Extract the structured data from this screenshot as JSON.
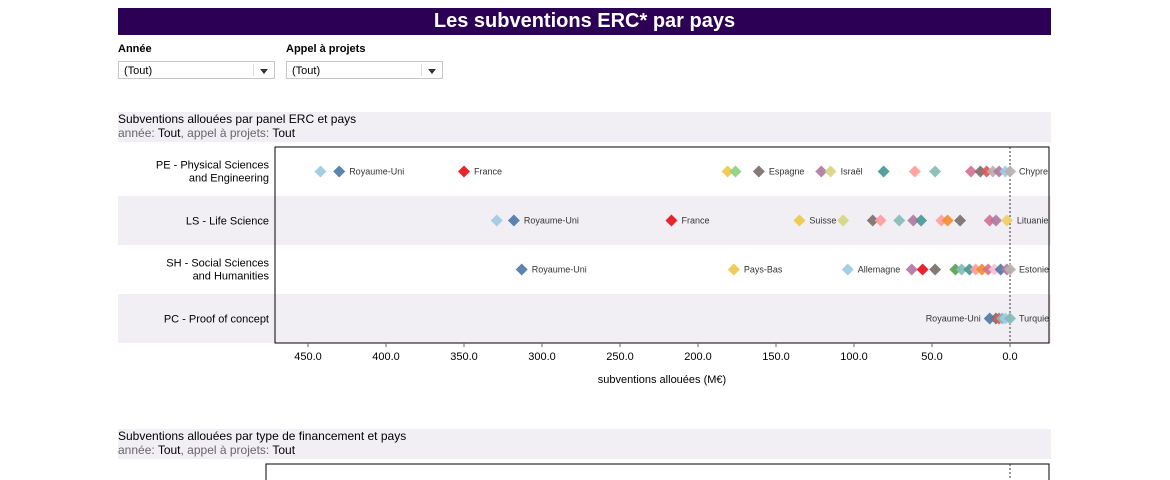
{
  "title": "Les subventions ERC* par pays",
  "filters": {
    "year": {
      "label": "Année",
      "value": "(Tout)"
    },
    "call": {
      "label": "Appel à projets",
      "value": "(Tout)"
    }
  },
  "section1": {
    "title": "Subventions allouées par panel ERC et pays",
    "sub_year_label": "année: ",
    "sub_year_value": "Tout",
    "sub_call_label": ", appel à projets: ",
    "sub_call_value": "Tout"
  },
  "section2": {
    "title": "Subventions allouées par type de financement et pays",
    "sub_year_label": "année: ",
    "sub_year_value": "Tout",
    "sub_call_label": ", appel à projets: ",
    "sub_call_value": "Tout"
  },
  "chart_data": {
    "type": "scatter",
    "xlabel": "subventions allouées (M€)",
    "xlim": [
      470,
      -25
    ],
    "x_reversed": true,
    "xticks": [
      "450.0",
      "400.0",
      "350.0",
      "300.0",
      "250.0",
      "200.0",
      "150.0",
      "100.0",
      "50.0",
      "0.0"
    ],
    "xtick_values": [
      450,
      400,
      350,
      300,
      250,
      200,
      150,
      100,
      50,
      0
    ],
    "reference_line": 0,
    "categories": [
      "PE - Physical Sciences and Engineering",
      "LS - Life Science",
      "SH - Social Sciences and Humanities",
      "PC - Proof of concept"
    ],
    "rows": [
      {
        "points": [
          {
            "x": 442,
            "color": "#9ecae1"
          },
          {
            "x": 430,
            "color": "#4e79a7",
            "label": "Royaume-Uni"
          },
          {
            "x": 350,
            "color": "#e8101b",
            "label": "France"
          },
          {
            "x": 181,
            "color": "#edc948"
          },
          {
            "x": 176,
            "color": "#8cd17d"
          },
          {
            "x": 161,
            "color": "#79706e",
            "label": "Espagne"
          },
          {
            "x": 121,
            "color": "#b07aa1"
          },
          {
            "x": 115,
            "color": "#d4d77f",
            "label": "Israël"
          },
          {
            "x": 81,
            "color": "#499894"
          },
          {
            "x": 61,
            "color": "#ff9d9a"
          },
          {
            "x": 48,
            "color": "#86bcb6"
          },
          {
            "x": 25,
            "color": "#d37295"
          },
          {
            "x": 19,
            "color": "#79706e"
          },
          {
            "x": 15,
            "color": "#e15759"
          },
          {
            "x": 11,
            "color": "#bab0ac"
          },
          {
            "x": 7,
            "color": "#b07aa1"
          },
          {
            "x": 3,
            "color": "#a0cbe8"
          },
          {
            "x": 0,
            "color": "#bab0ac",
            "label": "Chypre"
          }
        ]
      },
      {
        "points": [
          {
            "x": 329,
            "color": "#9ecae1"
          },
          {
            "x": 318,
            "color": "#4e79a7",
            "label": "Royaume-Uni"
          },
          {
            "x": 217,
            "color": "#e8101b",
            "label": "France"
          },
          {
            "x": 135,
            "color": "#edc948",
            "label": "Suisse"
          },
          {
            "x": 107,
            "color": "#d4d77f"
          },
          {
            "x": 88,
            "color": "#79706e"
          },
          {
            "x": 83,
            "color": "#ff9d9a"
          },
          {
            "x": 71,
            "color": "#86bcb6"
          },
          {
            "x": 62,
            "color": "#b07aa1"
          },
          {
            "x": 57,
            "color": "#499894"
          },
          {
            "x": 44,
            "color": "#ff9d9a"
          },
          {
            "x": 40,
            "color": "#f28e2b"
          },
          {
            "x": 32,
            "color": "#79706e"
          },
          {
            "x": 13,
            "color": "#d37295"
          },
          {
            "x": 9,
            "color": "#b07aa1"
          },
          {
            "x": 2,
            "color": "#f1ce63",
            "label": "Lituanie"
          }
        ]
      },
      {
        "points": [
          {
            "x": 313,
            "color": "#4e79a7",
            "label": "Royaume-Uni"
          },
          {
            "x": 177,
            "color": "#edc948",
            "label": "Pays-Bas"
          },
          {
            "x": 104,
            "color": "#9ecae1",
            "label": "Allemagne"
          },
          {
            "x": 63,
            "color": "#b07aa1"
          },
          {
            "x": 56,
            "color": "#e8101b"
          },
          {
            "x": 48,
            "color": "#79706e"
          },
          {
            "x": 35,
            "color": "#59a14f"
          },
          {
            "x": 31,
            "color": "#86bcb6"
          },
          {
            "x": 26,
            "color": "#499894"
          },
          {
            "x": 22,
            "color": "#ff9d9a"
          },
          {
            "x": 18,
            "color": "#f28e2b"
          },
          {
            "x": 14,
            "color": "#d37295"
          },
          {
            "x": 10,
            "color": "#fabfd2"
          },
          {
            "x": 6,
            "color": "#4e79a7"
          },
          {
            "x": 2,
            "color": "#b07aa1"
          },
          {
            "x": 0,
            "color": "#bab0ac",
            "label": "Estonie"
          }
        ]
      },
      {
        "points": [
          {
            "x": 13,
            "color": "#4e79a7",
            "label": "Royaume-Uni"
          },
          {
            "x": 9,
            "color": "#79706e"
          },
          {
            "x": 7,
            "color": "#e15759"
          },
          {
            "x": 5,
            "color": "#86bcb6"
          },
          {
            "x": 3,
            "color": "#a0cbe8"
          },
          {
            "x": 0,
            "color": "#86bcb6",
            "label": "Turquie"
          }
        ]
      }
    ],
    "chart2": {
      "type": "scatter",
      "reference_line": 0,
      "xlim": [
        470,
        -25
      ],
      "x_reversed": true
    }
  }
}
